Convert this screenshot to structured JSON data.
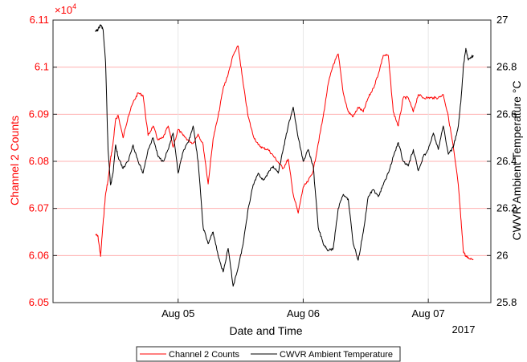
{
  "chart_data": {
    "type": "line",
    "xlabel": "Date and Time",
    "x_year_label": "2017",
    "x_ticks": [
      {
        "label": "Aug 05",
        "value": 1.0
      },
      {
        "label": "Aug 06",
        "value": 2.0
      },
      {
        "label": "Aug 07",
        "value": 3.0
      }
    ],
    "xlim": [
      0.0,
      3.5
    ],
    "left_axis": {
      "label": "Channel 2 Counts",
      "exponent_label": "×10",
      "exponent": "4",
      "ylim": [
        6.05,
        6.11
      ],
      "ticks": [
        "6.05",
        "6.06",
        "6.07",
        "6.08",
        "6.09",
        "6.1",
        "6.11"
      ],
      "color": "#ff0000"
    },
    "right_axis": {
      "label": "CWVR Ambient Temperature  °C",
      "ylim": [
        25.8,
        27.0
      ],
      "ticks": [
        "25.8",
        "26",
        "26.2",
        "26.4",
        "26.6",
        "26.8",
        "27"
      ],
      "color": "#000000"
    },
    "grid": true,
    "grid_color": "#ffb0b0",
    "legend_position": "bottom",
    "series": [
      {
        "name": "Channel 2 Counts",
        "axis": "left",
        "color": "#ff0000",
        "x": [
          0.34,
          0.36,
          0.38,
          0.4,
          0.42,
          0.44,
          0.46,
          0.48,
          0.5,
          0.52,
          0.56,
          0.6,
          0.64,
          0.68,
          0.72,
          0.76,
          0.8,
          0.84,
          0.88,
          0.92,
          0.96,
          1.0,
          1.04,
          1.08,
          1.12,
          1.16,
          1.2,
          1.24,
          1.28,
          1.32,
          1.36,
          1.4,
          1.44,
          1.48,
          1.52,
          1.56,
          1.6,
          1.64,
          1.68,
          1.72,
          1.76,
          1.8,
          1.84,
          1.88,
          1.92,
          1.96,
          2.0,
          2.04,
          2.08,
          2.12,
          2.16,
          2.2,
          2.24,
          2.28,
          2.32,
          2.36,
          2.4,
          2.44,
          2.48,
          2.52,
          2.56,
          2.6,
          2.64,
          2.68,
          2.72,
          2.76,
          2.8,
          2.84,
          2.88,
          2.92,
          2.96,
          3.0,
          3.04,
          3.08,
          3.12,
          3.16,
          3.2,
          3.24,
          3.26,
          3.28,
          3.3,
          3.32,
          3.36
        ],
        "values": [
          6.0645,
          6.064,
          6.0598,
          6.0668,
          6.073,
          6.076,
          6.0805,
          6.0838,
          6.0888,
          6.0898,
          6.085,
          6.0895,
          6.0925,
          6.0945,
          6.094,
          6.0855,
          6.0875,
          6.0845,
          6.085,
          6.0875,
          6.083,
          6.0868,
          6.0855,
          6.0845,
          6.0838,
          6.0858,
          6.0835,
          6.0752,
          6.0848,
          6.0895,
          6.0955,
          6.0985,
          6.1025,
          6.1045,
          6.0965,
          6.0895,
          6.0855,
          6.0835,
          6.0828,
          6.0825,
          6.0812,
          6.0798,
          6.0785,
          6.0805,
          6.073,
          6.069,
          6.0745,
          6.0758,
          6.078,
          6.0838,
          6.0895,
          6.0965,
          6.1005,
          6.1028,
          6.0945,
          6.0905,
          6.0895,
          6.0915,
          6.0905,
          6.0935,
          6.0955,
          6.0985,
          6.1025,
          6.1025,
          6.0905,
          6.0875,
          6.0935,
          6.0935,
          6.0905,
          6.0942,
          6.0935,
          6.0935,
          6.0935,
          6.0935,
          6.0942,
          6.0895,
          6.083,
          6.075,
          6.068,
          6.061,
          6.0598,
          6.0595,
          6.0592
        ]
      },
      {
        "name": "CWVR Ambient Temperature",
        "axis": "right",
        "color": "#000000",
        "x": [
          0.34,
          0.36,
          0.38,
          0.4,
          0.42,
          0.44,
          0.46,
          0.48,
          0.5,
          0.52,
          0.56,
          0.6,
          0.64,
          0.68,
          0.72,
          0.76,
          0.8,
          0.84,
          0.88,
          0.92,
          0.96,
          1.0,
          1.04,
          1.08,
          1.12,
          1.16,
          1.2,
          1.24,
          1.28,
          1.32,
          1.36,
          1.4,
          1.44,
          1.48,
          1.52,
          1.56,
          1.6,
          1.64,
          1.68,
          1.72,
          1.76,
          1.8,
          1.84,
          1.88,
          1.92,
          1.96,
          2.0,
          2.04,
          2.08,
          2.12,
          2.16,
          2.2,
          2.24,
          2.28,
          2.32,
          2.36,
          2.4,
          2.44,
          2.48,
          2.52,
          2.56,
          2.6,
          2.64,
          2.68,
          2.72,
          2.76,
          2.8,
          2.84,
          2.88,
          2.92,
          2.96,
          3.0,
          3.04,
          3.08,
          3.12,
          3.16,
          3.2,
          3.24,
          3.26,
          3.28,
          3.3,
          3.32,
          3.36
        ],
        "values": [
          26.95,
          26.96,
          26.98,
          26.96,
          26.82,
          26.45,
          26.3,
          26.35,
          26.47,
          26.42,
          26.37,
          26.4,
          26.47,
          26.4,
          26.35,
          26.45,
          26.5,
          26.42,
          26.4,
          26.45,
          26.52,
          26.35,
          26.44,
          26.48,
          26.55,
          26.4,
          26.12,
          26.05,
          26.1,
          26.0,
          25.93,
          26.03,
          25.87,
          25.95,
          26.05,
          26.2,
          26.3,
          26.35,
          26.32,
          26.35,
          26.38,
          26.35,
          26.45,
          26.55,
          26.63,
          26.5,
          26.4,
          26.45,
          26.38,
          26.12,
          26.05,
          26.02,
          26.03,
          26.2,
          26.26,
          26.24,
          26.05,
          25.98,
          26.1,
          26.25,
          26.28,
          26.25,
          26.3,
          26.35,
          26.42,
          26.48,
          26.4,
          26.38,
          26.45,
          26.36,
          26.42,
          26.45,
          26.52,
          26.45,
          26.55,
          26.43,
          26.46,
          26.55,
          26.65,
          26.8,
          26.88,
          26.83,
          26.85
        ]
      }
    ]
  }
}
